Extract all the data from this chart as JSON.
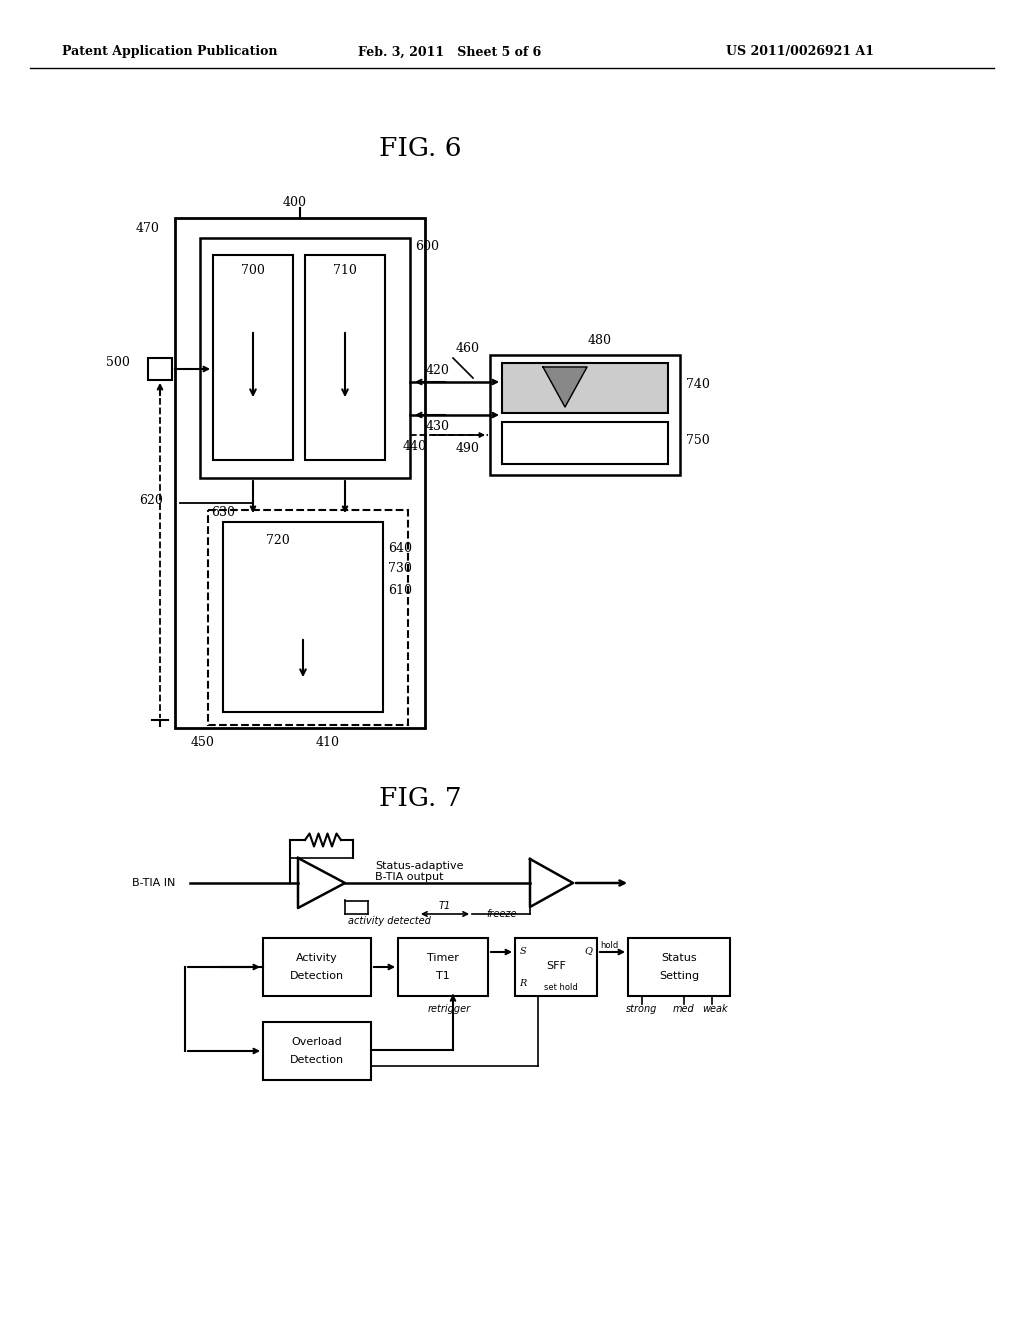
{
  "header_left": "Patent Application Publication",
  "header_center": "Feb. 3, 2011   Sheet 5 of 6",
  "header_right": "US 2011/0026921 A1",
  "fig6_title": "FIG. 6",
  "fig7_title": "FIG. 7",
  "bg_color": "#ffffff"
}
